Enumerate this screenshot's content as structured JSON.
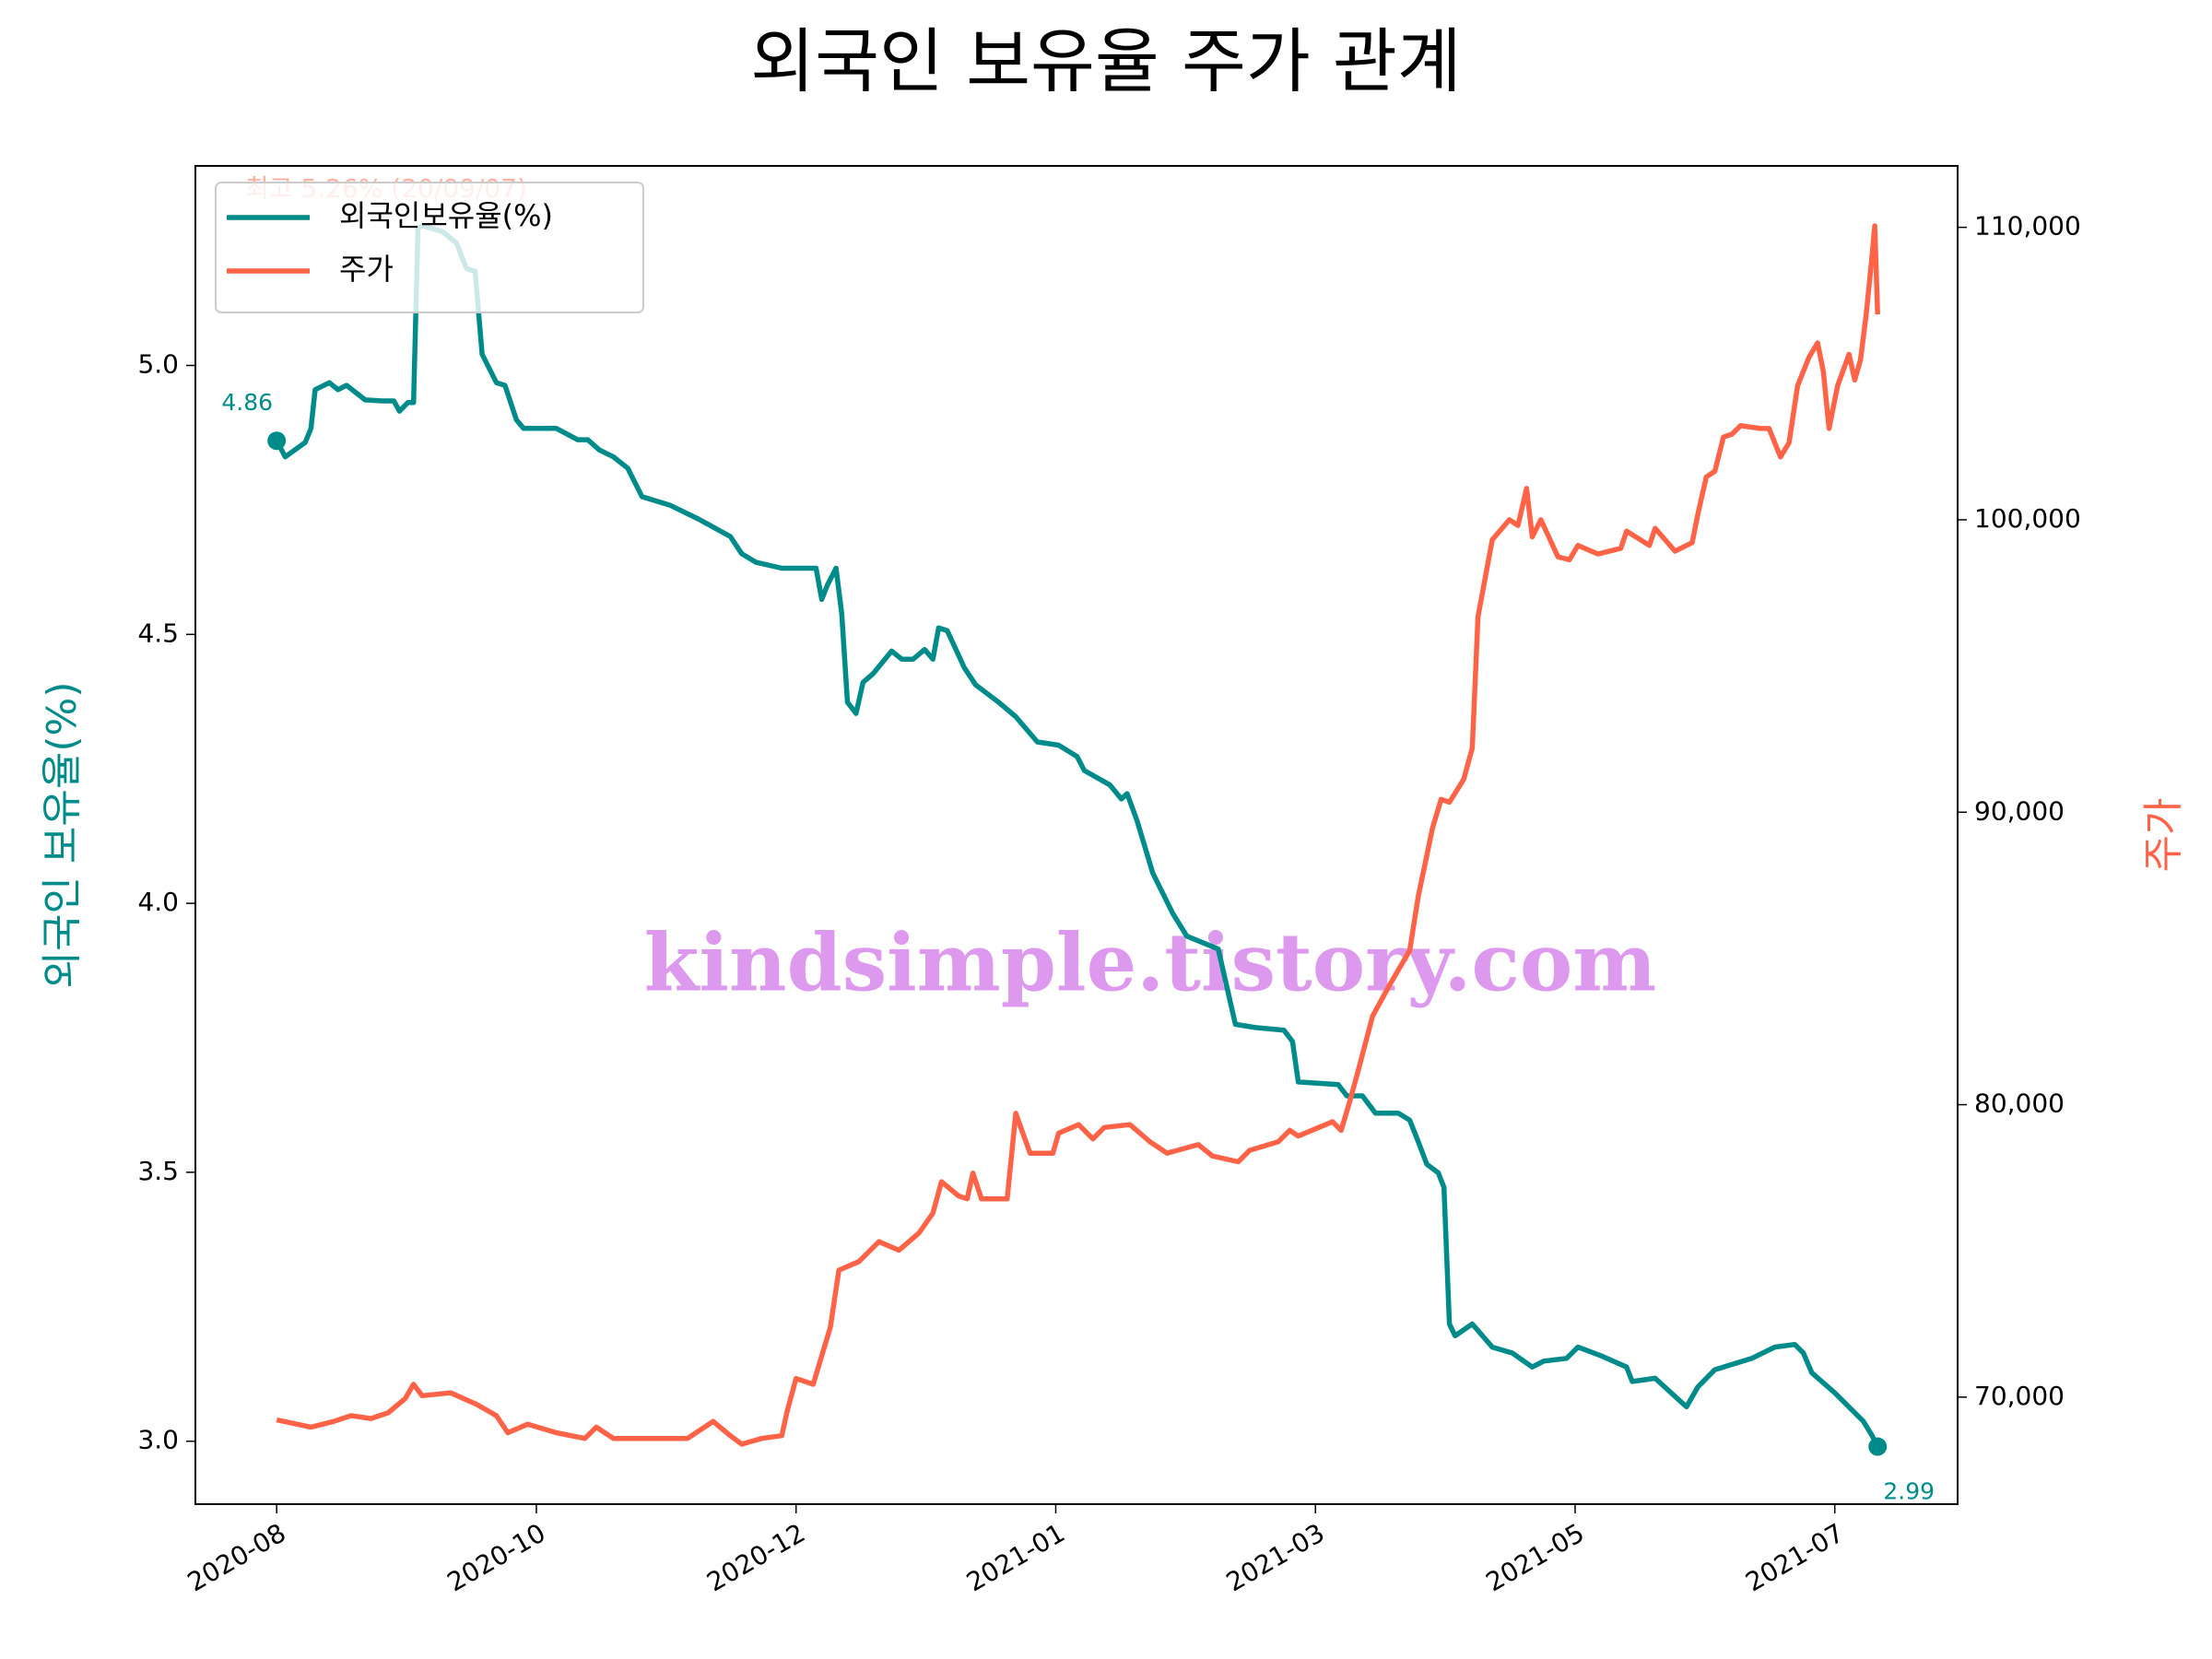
{
  "chart_data": {
    "type": "line",
    "title": "외국인 보유율 주가 관계",
    "ylabel": "외국인 보유율(%)",
    "y2label": "주가",
    "xlim": [
      -0.313,
      6.473
    ],
    "xticks": [
      {
        "value": 0,
        "label": "2020-08"
      },
      {
        "value": 1,
        "label": "2020-10"
      },
      {
        "value": 2,
        "label": "2020-12"
      },
      {
        "value": 3,
        "label": "2021-01"
      },
      {
        "value": 4,
        "label": "2021-03"
      },
      {
        "value": 5,
        "label": "2021-05"
      },
      {
        "value": 6,
        "label": "2021-07"
      }
    ],
    "ylim": [
      2.883,
      5.371
    ],
    "yticks": [
      {
        "value": 3,
        "label": "3.0"
      },
      3.5,
      {
        "value": 4,
        "label": "4.0"
      },
      4.5,
      {
        "value": 5,
        "label": "5.0"
      }
    ],
    "y2lim": [
      66340,
      112100
    ],
    "y2ticks": [
      {
        "value": 70000,
        "label": "70,000"
      },
      {
        "value": 80000,
        "label": "80,000"
      },
      {
        "value": 90000,
        "label": "90,000"
      },
      {
        "value": 100000,
        "label": "100,000"
      },
      {
        "value": 110000,
        "label": "110,000"
      }
    ],
    "legend": "upper left",
    "series": [
      {
        "name": "외국인보유율(%)",
        "color": "#008b8b",
        "axis": "y",
        "x": [
          0,
          0.033,
          0.11,
          0.132,
          0.148,
          0.203,
          0.236,
          0.269,
          0.341,
          0.407,
          0.451,
          0.473,
          0.505,
          0.527,
          0.544,
          0.56,
          0.637,
          0.692,
          0.731,
          0.764,
          0.791,
          0.846,
          0.879,
          0.923,
          0.951,
          1.077,
          1.159,
          1.198,
          1.242,
          1.297,
          1.352,
          1.407,
          1.516,
          1.626,
          1.747,
          1.791,
          1.846,
          1.945,
          2.011,
          2.077,
          2.099,
          2.121,
          2.154,
          2.176,
          2.198,
          2.231,
          2.258,
          2.297,
          2.368,
          2.407,
          2.451,
          2.495,
          2.527,
          2.549,
          2.582,
          2.648,
          2.692,
          2.78,
          2.846,
          2.929,
          3.011,
          3.082,
          3.11,
          3.209,
          3.253,
          3.275,
          3.313,
          3.374,
          3.451,
          3.505,
          3.626,
          3.692,
          3.769,
          3.879,
          3.912,
          3.934,
          4.088,
          4.121,
          4.181,
          4.231,
          4.319,
          4.363,
          4.396,
          4.429,
          4.473,
          4.495,
          4.516,
          4.538,
          4.604,
          4.681,
          4.758,
          4.835,
          4.879,
          4.967,
          5.011,
          5.099,
          5.198,
          5.22,
          5.308,
          5.429,
          5.473,
          5.538,
          5.681,
          5.769,
          5.846,
          5.879,
          5.912,
          6.0,
          6.11,
          6.143,
          6.165
        ],
        "values": [
          4.86,
          4.83,
          4.857,
          4.883,
          4.955,
          4.968,
          4.955,
          4.963,
          4.936,
          4.934,
          4.934,
          4.915,
          4.931,
          4.931,
          5.255,
          5.26,
          5.249,
          5.228,
          5.18,
          5.175,
          5.021,
          4.968,
          4.963,
          4.899,
          4.883,
          4.883,
          4.862,
          4.862,
          4.843,
          4.83,
          4.809,
          4.756,
          4.74,
          4.714,
          4.682,
          4.65,
          4.634,
          4.623,
          4.623,
          4.623,
          4.565,
          4.592,
          4.623,
          4.538,
          4.374,
          4.353,
          4.411,
          4.427,
          4.469,
          4.454,
          4.454,
          4.472,
          4.454,
          4.512,
          4.507,
          4.438,
          4.406,
          4.374,
          4.347,
          4.3,
          4.294,
          4.273,
          4.247,
          4.22,
          4.194,
          4.204,
          4.154,
          4.056,
          3.981,
          3.939,
          3.915,
          3.775,
          3.769,
          3.764,
          3.743,
          3.668,
          3.663,
          3.642,
          3.642,
          3.61,
          3.61,
          3.597,
          3.557,
          3.515,
          3.499,
          3.472,
          3.218,
          3.196,
          3.218,
          3.175,
          3.164,
          3.138,
          3.149,
          3.154,
          3.175,
          3.159,
          3.138,
          3.111,
          3.117,
          3.064,
          3.101,
          3.133,
          3.154,
          3.175,
          3.18,
          3.164,
          3.127,
          3.09,
          3.037,
          3.011,
          2.99
        ]
      },
      {
        "name": "주가",
        "color": "#ff6347",
        "axis": "y2",
        "x": [
          0,
          0.132,
          0.22,
          0.286,
          0.363,
          0.429,
          0.495,
          0.527,
          0.56,
          0.67,
          0.769,
          0.846,
          0.89,
          0.967,
          1.077,
          1.187,
          1.231,
          1.297,
          1.44,
          1.582,
          1.681,
          1.747,
          1.791,
          1.868,
          1.945,
          1.967,
          2.0,
          2.066,
          2.132,
          2.165,
          2.242,
          2.319,
          2.396,
          2.473,
          2.527,
          2.56,
          2.626,
          2.659,
          2.681,
          2.714,
          2.813,
          2.846,
          2.901,
          2.989,
          3.011,
          3.088,
          3.143,
          3.187,
          3.286,
          3.363,
          3.429,
          3.549,
          3.604,
          3.703,
          3.747,
          3.857,
          3.901,
          3.934,
          4.066,
          4.099,
          4.132,
          4.165,
          4.22,
          4.286,
          4.363,
          4.396,
          4.451,
          4.484,
          4.516,
          4.571,
          4.604,
          4.626,
          4.681,
          4.747,
          4.78,
          4.813,
          4.835,
          4.868,
          4.934,
          4.978,
          5.011,
          5.088,
          5.176,
          5.198,
          5.286,
          5.308,
          5.385,
          5.451,
          5.473,
          5.505,
          5.538,
          5.571,
          5.604,
          5.637,
          5.714,
          5.747,
          5.791,
          5.824,
          5.857,
          5.901,
          5.934,
          5.956,
          5.978,
          6.011,
          6.055,
          6.077,
          6.099,
          6.121,
          6.143,
          6.154,
          6.165
        ],
        "values": [
          69220,
          68976,
          69171,
          69366,
          69269,
          69464,
          69952,
          70440,
          70050,
          70147,
          69757,
          69366,
          68781,
          69074,
          68781,
          68586,
          68976,
          68586,
          68586,
          68586,
          69171,
          68683,
          68391,
          68586,
          68683,
          69561,
          70635,
          70440,
          72389,
          74341,
          74634,
          75317,
          75024,
          75610,
          76293,
          77366,
          76878,
          76781,
          77659,
          76781,
          76781,
          79707,
          78341,
          78341,
          79024,
          79317,
          78829,
          79220,
          79317,
          78732,
          78341,
          78634,
          78244,
          78049,
          78439,
          78732,
          79122,
          78927,
          79415,
          79122,
          80098,
          81171,
          83024,
          84098,
          85268,
          87122,
          89463,
          90439,
          90341,
          91122,
          92195,
          96683,
          99317,
          100000,
          99805,
          101073,
          99414,
          100000,
          98732,
          98634,
          99122,
          98829,
          99024,
          99610,
          99122,
          99708,
          98927,
          99220,
          100195,
          101463,
          101658,
          102829,
          102927,
          103220,
          103122,
          103122,
          102146,
          102634,
          104585,
          105561,
          106049,
          105073,
          103122,
          104585,
          105659,
          104780,
          105463,
          107024,
          108976,
          110049,
          107024
        ]
      }
    ],
    "annotations": [
      {
        "text": "최고 5.26% (20/09/07)",
        "color": "#ff6347"
      }
    ],
    "watermark": {
      "text": "kindsimple.tistory.com",
      "color": "#dd99ee"
    }
  }
}
